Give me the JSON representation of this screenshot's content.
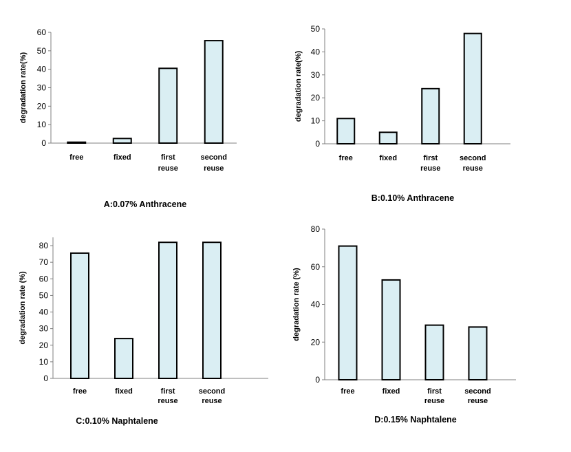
{
  "chart_data": [
    {
      "type": "bar",
      "title": "A:0.07% Anthracene",
      "ylabel": "degradation rate(%)",
      "categories": [
        [
          "free"
        ],
        [
          "fixed"
        ],
        [
          "first",
          "reuse"
        ],
        [
          "second",
          "reuse"
        ]
      ],
      "values": [
        0.5,
        2.5,
        40.5,
        55.5
      ],
      "ylim": [
        0,
        60
      ],
      "yticks": [
        0,
        10,
        20,
        30,
        40,
        50,
        60
      ],
      "bar_color": "#daeef3",
      "grid": false
    },
    {
      "type": "bar",
      "title": "B:0.10%  Anthracene",
      "ylabel": "degradation rate(%)",
      "categories": [
        [
          "free"
        ],
        [
          "fixed"
        ],
        [
          "first",
          "reuse"
        ],
        [
          "second",
          "reuse"
        ]
      ],
      "values": [
        11,
        5,
        24,
        48
      ],
      "ylim": [
        0,
        50
      ],
      "yticks": [
        0,
        10,
        20,
        30,
        40,
        50
      ],
      "bar_color": "#daeef3",
      "grid": false
    },
    {
      "type": "bar",
      "title": "C:0.10% Naphtalene",
      "ylabel": "degradation rate (%)",
      "categories": [
        [
          "free"
        ],
        [
          "fixed"
        ],
        [
          "first",
          "reuse"
        ],
        [
          "second",
          "reuse"
        ]
      ],
      "values": [
        75.5,
        24,
        82,
        82
      ],
      "ylim": [
        0,
        85
      ],
      "yticks": [
        0,
        10,
        20,
        30,
        40,
        50,
        60,
        70,
        80
      ],
      "bar_color": "#daeef3",
      "grid": false
    },
    {
      "type": "bar",
      "title": "D:0.15% Naphtalene",
      "ylabel": "degradation rate (%)",
      "categories": [
        [
          "free"
        ],
        [
          "fixed"
        ],
        [
          "first",
          "reuse"
        ],
        [
          "second",
          "reuse"
        ]
      ],
      "values": [
        71,
        53,
        29,
        28
      ],
      "ylim": [
        0,
        80
      ],
      "yticks": [
        0,
        20,
        40,
        60,
        80
      ],
      "bar_color": "#daeef3",
      "grid": false
    }
  ]
}
